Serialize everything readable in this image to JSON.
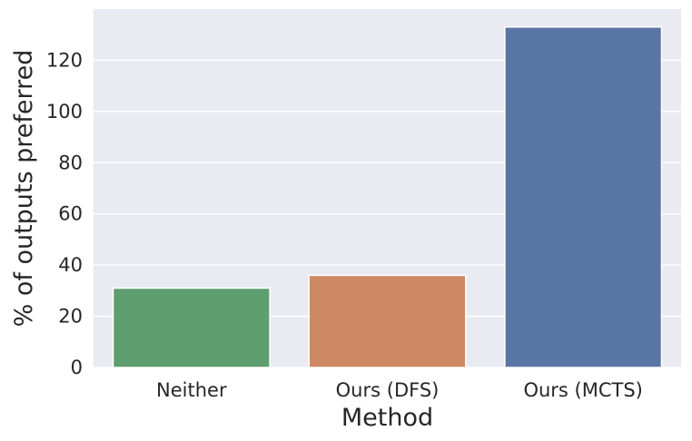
{
  "chart_data": {
    "type": "bar",
    "title": "",
    "xlabel": "Method",
    "ylabel": "% of outputs preferred",
    "categories": [
      "Neither",
      "Ours (DFS)",
      "Ours (MCTS)"
    ],
    "values": [
      31,
      36,
      133
    ],
    "colors": [
      "#5f9e6e",
      "#cc8963",
      "#5975a4"
    ],
    "ylim": [
      0,
      140
    ],
    "yticks": [
      0,
      20,
      40,
      60,
      80,
      100,
      120
    ],
    "ytick_labels": [
      "0",
      "20",
      "40",
      "60",
      "80",
      "100",
      "120"
    ],
    "grid": true,
    "background": "#eaeaf2",
    "grid_color": "#ffffff"
  }
}
